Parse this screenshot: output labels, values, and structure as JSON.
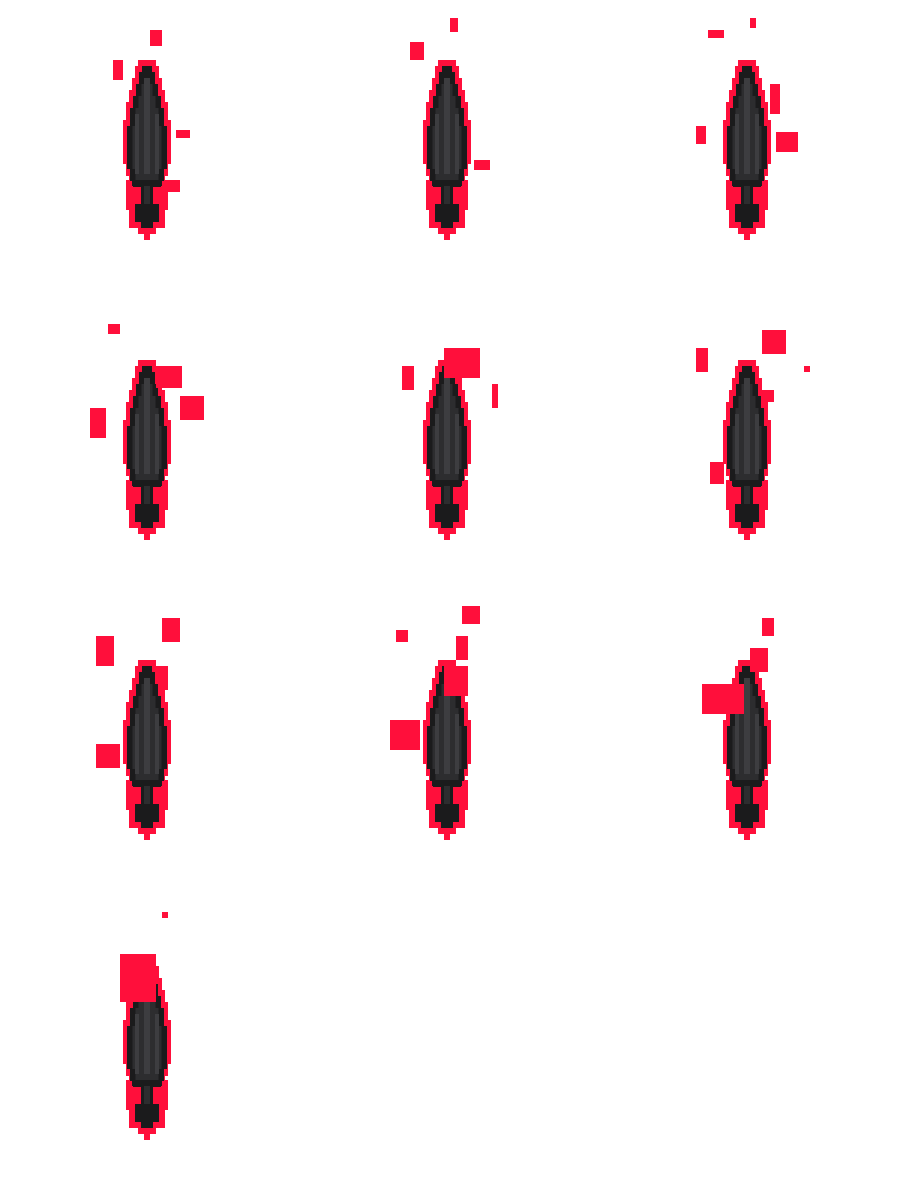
{
  "sprite_sheet": {
    "columns": 3,
    "frames": [
      {
        "index": 1,
        "sparks": [
          [
            150,
            30,
            12,
            16
          ],
          [
            113,
            60,
            10,
            20
          ],
          [
            176,
            130,
            14,
            8
          ],
          [
            168,
            180,
            12,
            12
          ]
        ]
      },
      {
        "index": 2,
        "sparks": [
          [
            450,
            18,
            8,
            14
          ],
          [
            410,
            42,
            14,
            18
          ],
          [
            474,
            160,
            16,
            10
          ]
        ]
      },
      {
        "index": 3,
        "sparks": [
          [
            708,
            30,
            16,
            8
          ],
          [
            750,
            18,
            6,
            10
          ],
          [
            770,
            84,
            10,
            30
          ],
          [
            696,
            126,
            10,
            18
          ],
          [
            776,
            132,
            22,
            20
          ]
        ]
      },
      {
        "index": 4,
        "sparks": [
          [
            108,
            324,
            12,
            10
          ],
          [
            156,
            366,
            26,
            22
          ],
          [
            180,
            396,
            24,
            24
          ],
          [
            90,
            408,
            16,
            30
          ]
        ]
      },
      {
        "index": 5,
        "sparks": [
          [
            402,
            366,
            12,
            24
          ],
          [
            444,
            348,
            36,
            30
          ],
          [
            492,
            384,
            6,
            24
          ]
        ]
      },
      {
        "index": 6,
        "sparks": [
          [
            696,
            348,
            12,
            24
          ],
          [
            762,
            330,
            24,
            24
          ],
          [
            804,
            366,
            6,
            6
          ],
          [
            762,
            390,
            12,
            12
          ],
          [
            710,
            462,
            14,
            22
          ]
        ]
      },
      {
        "index": 7,
        "sparks": [
          [
            96,
            636,
            18,
            30
          ],
          [
            162,
            618,
            18,
            24
          ],
          [
            96,
            744,
            24,
            24
          ],
          [
            158,
            666,
            10,
            24
          ]
        ]
      },
      {
        "index": 8,
        "sparks": [
          [
            396,
            630,
            12,
            12
          ],
          [
            462,
            606,
            18,
            18
          ],
          [
            456,
            636,
            12,
            24
          ],
          [
            390,
            720,
            30,
            30
          ],
          [
            444,
            666,
            24,
            30
          ]
        ]
      },
      {
        "index": 9,
        "sparks": [
          [
            762,
            618,
            12,
            18
          ],
          [
            750,
            648,
            18,
            24
          ],
          [
            702,
            684,
            42,
            30
          ]
        ]
      },
      {
        "index": 10,
        "sparks": [
          [
            162,
            912,
            6,
            6
          ],
          [
            120,
            954,
            36,
            48
          ]
        ]
      }
    ]
  },
  "colors": {
    "glow": "#ff0f3b",
    "outline": "#1b1b1c",
    "body": "#2d2d2f",
    "highlight": "#3d3d40",
    "background": "#ffffff"
  }
}
